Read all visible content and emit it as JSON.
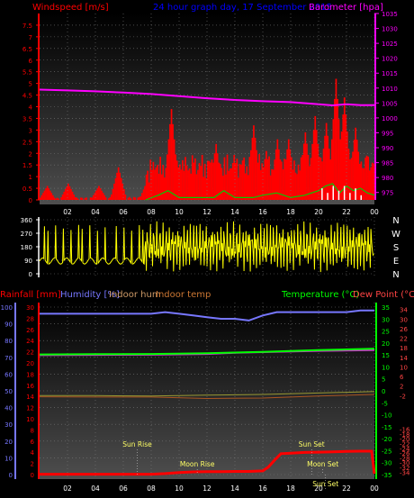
{
  "header": {
    "left_label": "Windspeed [m/s]",
    "center_title": "24 hour graph day, 17 September 2015",
    "right_label": "Barometer [hpa]"
  },
  "colors": {
    "wind": "#ff0000",
    "gust_green": "#00cc00",
    "gust_white": "#ffffff",
    "barometer": "#ff00ff",
    "direction": "#ffff00",
    "rain": "#ff0000",
    "humidity": "#7777ff",
    "temperature": "#00ff00",
    "dew_point": "#ff4444",
    "indoor": "#996633",
    "astro": "#ffff66",
    "axis_title": "#0000ff"
  },
  "chart_data": [
    {
      "type": "bar",
      "title": "24 hour graph day, 17 September 2015",
      "xticks": [
        "02",
        "04",
        "06",
        "08",
        "10",
        "12",
        "14",
        "16",
        "18",
        "20",
        "22",
        "00"
      ],
      "ylabel": "Windspeed [m/s]",
      "ylim": [
        0,
        8
      ],
      "yticks": [
        "0",
        "0.5",
        "1",
        "1.5",
        "2",
        "2.5",
        "3",
        "3.5",
        "4",
        "4.5",
        "5",
        "5.5",
        "6",
        "6.5",
        "7",
        "7.5"
      ],
      "y2label": "Barometer [hpa]",
      "y2lim": [
        972.5,
        1035
      ],
      "y2ticks": [
        "975",
        "980",
        "985",
        "990",
        "995",
        "1000",
        "1005",
        "1010",
        "1015",
        "1020",
        "1025",
        "1030",
        "1035"
      ],
      "barometer": {
        "x": [
          0,
          2,
          4,
          6,
          8,
          10,
          12,
          14,
          16,
          18,
          20,
          21,
          22,
          23,
          24
        ],
        "y": [
          1009.5,
          1009.2,
          1008.9,
          1008.5,
          1008.0,
          1007.3,
          1006.6,
          1006.0,
          1005.6,
          1005.3,
          1004.6,
          1004.2,
          1004.6,
          1004.3,
          1004.3
        ]
      },
      "windspeed_peaks": {
        "x": [
          0.5,
          2.0,
          4.2,
          5.6,
          7.7,
          8.3,
          9.4,
          10.1,
          11.0,
          12.6,
          13.9,
          15.3,
          16.2,
          17.0,
          17.8,
          19.0,
          19.7,
          20.5,
          21.2,
          21.8,
          22.6,
          23.4,
          23.8
        ],
        "y": [
          0.6,
          0.7,
          0.6,
          1.4,
          0.9,
          1.4,
          3.9,
          1.3,
          1.6,
          2.4,
          1.9,
          3.2,
          2.1,
          2.6,
          2.6,
          2.9,
          3.6,
          3.3,
          5.2,
          4.4,
          3.1,
          1.9,
          1.6
        ]
      },
      "gust_green": {
        "x": [
          7.6,
          8.5,
          9.2,
          10.0,
          12.5,
          13.2,
          14.0,
          15.3,
          16.0,
          17.0,
          18.0,
          19.0,
          20.0,
          20.5,
          21.0,
          21.5,
          22.0,
          22.5,
          23.0,
          23.5,
          24.0
        ],
        "y": [
          0,
          0.2,
          0.4,
          0.1,
          0.1,
          0.4,
          0.1,
          0.1,
          0.2,
          0.3,
          0.1,
          0.2,
          0.4,
          0.6,
          0.7,
          0.3,
          0.6,
          0.4,
          0.5,
          0.3,
          0.2
        ]
      },
      "gust_white": {
        "x": [
          20.2,
          20.6,
          21.0,
          21.4,
          21.8,
          22.2,
          22.6,
          23.0
        ],
        "y": [
          0.5,
          0.3,
          0.6,
          0.4,
          0.6,
          0.3,
          0.5,
          0.2
        ]
      }
    },
    {
      "type": "scatter",
      "xticks": [
        "02",
        "04",
        "06",
        "08",
        "10",
        "12",
        "14",
        "16",
        "18",
        "20",
        "22",
        "00"
      ],
      "ylim": [
        0,
        360
      ],
      "yticks": [
        "0",
        "90",
        "180",
        "270",
        "360"
      ],
      "direction_labels": [
        "N",
        "W",
        "S",
        "E",
        "N"
      ],
      "series": [
        {
          "name": "Wind direction",
          "x": [
            0,
            0.8,
            1.6,
            2.4,
            3.1,
            3.6,
            4.2,
            4.8,
            5.4,
            6.0,
            6.6,
            7.2,
            7.8,
            8.4,
            9.0,
            9.6,
            10.2,
            10.8,
            11.4,
            12.0,
            12.6,
            13.2,
            13.8,
            14.4,
            15.0,
            15.6,
            16.2,
            16.8,
            17.4,
            18.0,
            18.6,
            19.2,
            19.8,
            20.4,
            21.0,
            21.6,
            22.2,
            22.8,
            23.4,
            24.0
          ],
          "y": [
            85,
            80,
            90,
            300,
            60,
            200,
            90,
            330,
            60,
            120,
            40,
            300,
            50,
            340,
            60,
            320,
            30,
            350,
            80,
            310,
            40,
            330,
            60,
            300,
            20,
            340,
            70,
            320,
            50,
            350,
            30,
            300,
            80,
            340,
            20,
            310,
            60,
            350,
            40,
            330
          ]
        }
      ]
    },
    {
      "type": "line",
      "xticks": [
        "02",
        "04",
        "06",
        "08",
        "10",
        "12",
        "14",
        "16",
        "18",
        "20",
        "22",
        "00"
      ],
      "legend": [
        "Rainfall [mm]",
        "Humidity [%]",
        "Indoor hum",
        "Indoor temp",
        "Temperature (°C)",
        "Dew Point (°C)"
      ],
      "y_rain_lim": [
        0,
        100
      ],
      "y_rain_ticks": [
        "0",
        "10",
        "20",
        "30",
        "40",
        "50",
        "60",
        "70",
        "80",
        "90",
        "100"
      ],
      "y_hum_lim": [
        0,
        30
      ],
      "y_hum_ticks": [
        "0",
        "2",
        "4",
        "6",
        "8",
        "10",
        "12",
        "14",
        "16",
        "18",
        "20",
        "22",
        "24",
        "26",
        "28",
        "30"
      ],
      "y_temp_lim": [
        -35,
        35
      ],
      "y_temp_ticks": [
        "-35",
        "-30",
        "-25",
        "-20",
        "-15",
        "-10",
        "-5",
        "0",
        "5",
        "10",
        "15",
        "20",
        "25",
        "30",
        "35"
      ],
      "y_dew_ticks": [
        "-16",
        "-18",
        "-20",
        "-22",
        "-24",
        "-26",
        "-28",
        "-30",
        "-32",
        "-34",
        "-2",
        "2",
        "6",
        "10",
        "14",
        "18",
        "22",
        "26",
        "30",
        "34"
      ],
      "humidity": {
        "x": [
          0,
          4,
          8,
          9,
          10,
          11,
          12,
          13,
          14,
          15,
          16,
          17,
          18,
          20,
          22,
          23,
          24
        ],
        "y": [
          96,
          96,
          96,
          97,
          96,
          95,
          94,
          93,
          93,
          92,
          95,
          97,
          97,
          97,
          97,
          98,
          98
        ]
      },
      "temperature": {
        "x": [
          0,
          4,
          8,
          12,
          16,
          20,
          22,
          24
        ],
        "y": [
          15.2,
          15.3,
          15.4,
          15.7,
          16.3,
          17.0,
          17.3,
          17.6
        ]
      },
      "dew_point": {
        "x": [
          0,
          4,
          8,
          12,
          14,
          16,
          20,
          24
        ],
        "y": [
          14.9,
          15.0,
          15.1,
          15.4,
          15.9,
          16.2,
          16.7,
          17.0
        ]
      },
      "indoor_temp": {
        "x": [
          0,
          4,
          8,
          12,
          16,
          20,
          24
        ],
        "y": [
          -2.5,
          -2.6,
          -2.6,
          -3.2,
          -3.0,
          -2.2,
          -1.5
        ]
      },
      "indoor_hum": {
        "x": [
          0,
          4,
          8,
          12,
          16,
          20,
          24
        ],
        "y": [
          -2.0,
          -2.0,
          -2.2,
          -1.8,
          -1.5,
          -0.9,
          -0.3
        ]
      },
      "rainfall": {
        "x": [
          0,
          8,
          9,
          10,
          11,
          12,
          13,
          14,
          15,
          16,
          16.4,
          16.8,
          17.3,
          18,
          19,
          20,
          21,
          22,
          23,
          23.8,
          24
        ],
        "y": [
          0.2,
          0.2,
          0.6,
          1.2,
          1.6,
          1.7,
          1.8,
          1.9,
          1.9,
          2.2,
          4.5,
          8.2,
          12.5,
          12.8,
          13.2,
          13.4,
          13.6,
          13.8,
          14.0,
          14.0,
          0.5
        ]
      },
      "annotations": [
        {
          "label": "Sun Rise",
          "x": 7.0
        },
        {
          "label": "Moon Rise",
          "x": 11.3
        },
        {
          "label": "Sun Set",
          "x": 19.5
        },
        {
          "label": "Moon Set",
          "x": 20.3
        },
        {
          "label": "Sun Set",
          "x": 20.5
        }
      ]
    }
  ]
}
